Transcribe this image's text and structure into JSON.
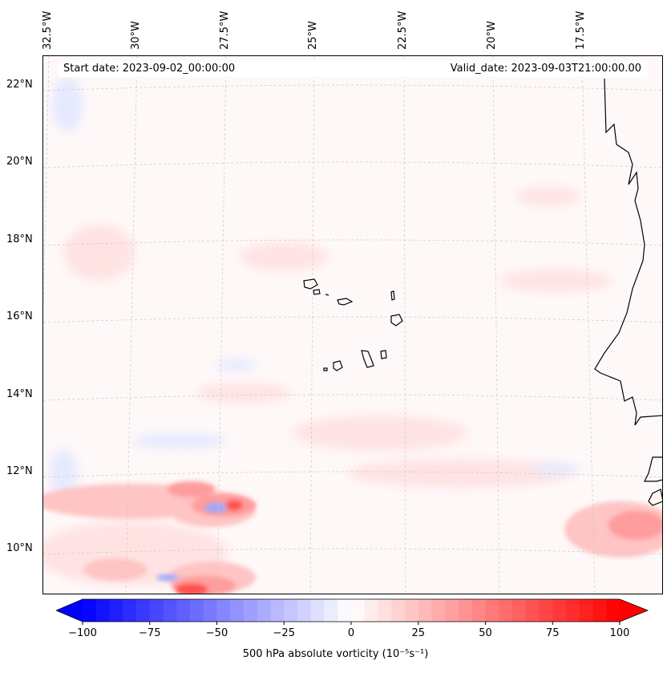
{
  "map": {
    "title_left": "Start date: 2023-09-02_00:00:00",
    "title_right": "Valid_date: 2023-09-03T21:00:00.00",
    "lon_labels": [
      "32.5°W",
      "30°W",
      "27.5°W",
      "25°W",
      "22.5°W",
      "20°W",
      "17.5°W"
    ],
    "lat_labels": [
      "22°N",
      "20°N",
      "18°N",
      "16°N",
      "14°N",
      "12°N",
      "10°N"
    ],
    "extent": {
      "lon_min": -33,
      "lon_max": -15.5,
      "lat_min": 8.8,
      "lat_max": 22.8
    },
    "field": "500 hPa absolute vorticity",
    "colors": {
      "negative": "#0000ff",
      "neutral": "#ffffff",
      "positive": "#ff0000",
      "coast": "#000000",
      "grid": "#c8c8c8"
    }
  },
  "colorbar": {
    "label": "500 hPa absolute vorticity (10⁻⁵s⁻¹)",
    "ticks": [
      "−100",
      "−75",
      "−50",
      "−25",
      "0",
      "25",
      "50",
      "75",
      "100"
    ],
    "min": -100,
    "max": 100,
    "levels": 40,
    "extend": "both"
  }
}
